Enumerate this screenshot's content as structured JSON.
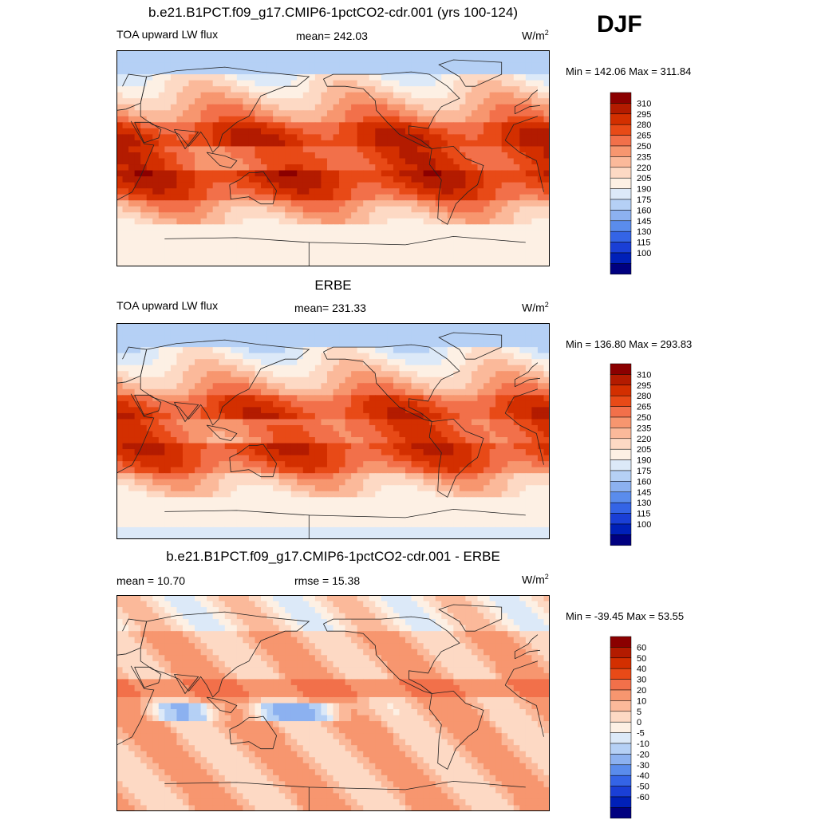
{
  "season": "DJF",
  "panels": [
    {
      "title": "b.e21.B1PCT.f09_g17.CMIP6-1pctCO2-cdr.001 (yrs 100-124)",
      "left": "TOA upward LW flux",
      "center": "mean= 242.03",
      "units_base": "W/m",
      "units_exp": "2",
      "minmax": "Min = 142.06 Max = 311.84",
      "field_scale": "absolute",
      "field_offset": 8
    },
    {
      "title": "ERBE",
      "left": "TOA upward LW flux",
      "center": "mean= 231.33",
      "units_base": "W/m",
      "units_exp": "2",
      "minmax": "Min = 136.80 Max = 293.83",
      "field_scale": "absolute",
      "field_offset": 0
    },
    {
      "title": "b.e21.B1PCT.f09_g17.CMIP6-1pctCO2-cdr.001 - ERBE",
      "left": "mean =  10.70",
      "center": "rmse =  15.38",
      "units_base": "W/m",
      "units_exp": "2",
      "minmax": "Min = -39.45 Max =  53.55",
      "field_scale": "difference",
      "field_offset": 0
    }
  ],
  "colorbars": {
    "absolute": {
      "labels": [
        "310",
        "295",
        "280",
        "265",
        "250",
        "235",
        "220",
        "205",
        "190",
        "175",
        "160",
        "145",
        "130",
        "115",
        "100"
      ],
      "thresholds": [
        100,
        115,
        130,
        145,
        160,
        175,
        190,
        205,
        220,
        235,
        250,
        265,
        280,
        295,
        310
      ],
      "colors": [
        "#8b0000",
        "#b31b00",
        "#d32f00",
        "#e84a17",
        "#f2704a",
        "#f7966f",
        "#fbb99a",
        "#fdd9c4",
        "#fdf0e4",
        "#dce9f8",
        "#b5d0f5",
        "#8cb1f0",
        "#5a8cec",
        "#3464e6",
        "#1a3fd6",
        "#0020b8",
        "#000080"
      ]
    },
    "difference": {
      "labels": [
        "60",
        "50",
        "40",
        "30",
        "20",
        "10",
        "5",
        "0",
        "-5",
        "-10",
        "-20",
        "-30",
        "-40",
        "-50",
        "-60"
      ],
      "thresholds": [
        -60,
        -50,
        -40,
        -30,
        -20,
        -10,
        -5,
        0,
        5,
        10,
        20,
        30,
        40,
        50,
        60
      ],
      "colors": [
        "#8b0000",
        "#b31b00",
        "#d32f00",
        "#e84a17",
        "#f2704a",
        "#f7966f",
        "#fbb99a",
        "#fdd9c4",
        "#fdf0e4",
        "#dce9f8",
        "#b5d0f5",
        "#8cb1f0",
        "#5a8cec",
        "#3464e6",
        "#1a3fd6",
        "#0020b8",
        "#000080"
      ]
    }
  }
}
